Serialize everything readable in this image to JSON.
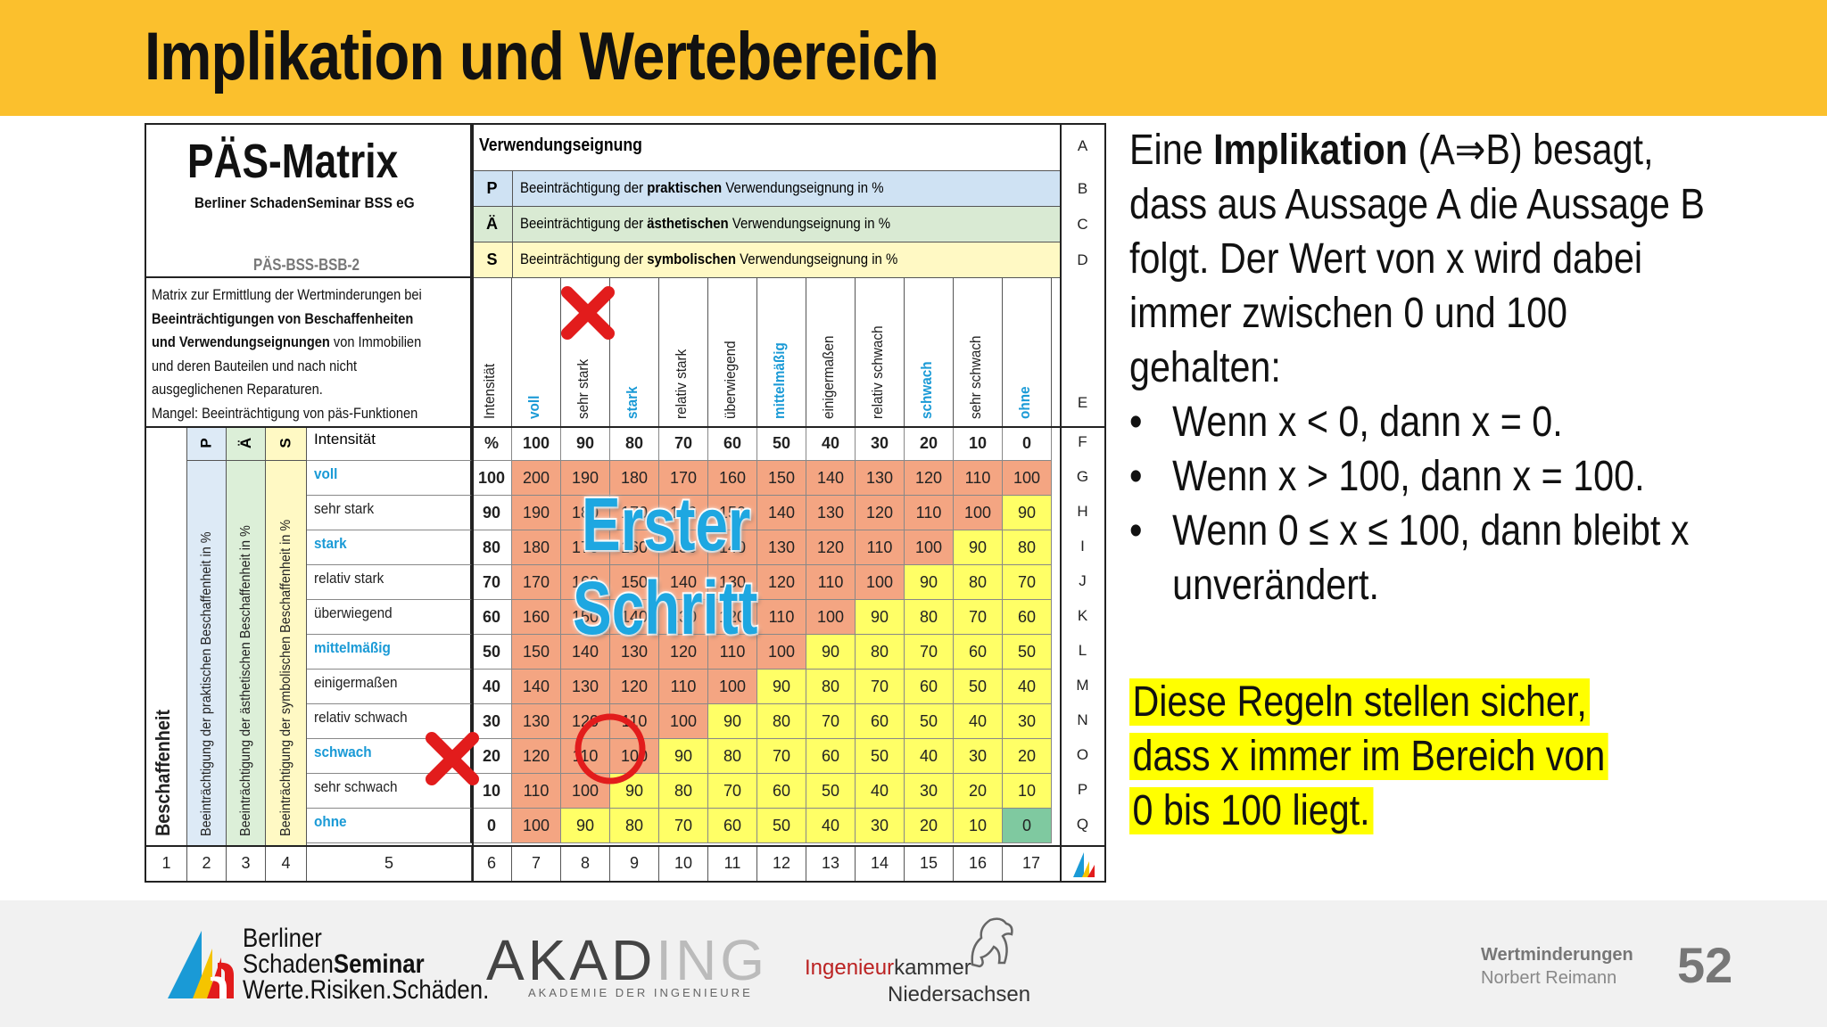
{
  "title": "Implikation und Wertebereich",
  "matrix": {
    "title": "PÄS-Matrix",
    "subtitle": "Berliner SchadenSeminar BSS eG",
    "code": "PÄS-BSS-BSB-2",
    "desc_1": "Matrix zur Ermittlung der Wertminderungen bei",
    "desc_2": "Beeinträchtigungen von Beschaffenheiten",
    "desc_3a": "und Verwendungseignungen",
    "desc_3b": " von Immobilien",
    "desc_4": "und deren Bauteilen und nach nicht",
    "desc_5": "ausgeglichenen Reparaturen.",
    "desc_6": "Mangel: Beeinträchtigung von päs-Funktionen",
    "vu_title": "Verwendungseignung",
    "vu_rows": [
      {
        "key": "P",
        "pre": "Beeinträchtigung der ",
        "bold": "praktischen",
        "post": " Verwendungseignung in %",
        "letter": "B",
        "color": "#cfe2f3"
      },
      {
        "key": "Ä",
        "pre": "Beeinträchtigung der ",
        "bold": "ästhetischen",
        "post": " Verwendungseignung in %",
        "letter": "C",
        "color": "#d9ead3"
      },
      {
        "key": "S",
        "pre": "Beeinträchtigung der ",
        "bold": "symbolischen",
        "post": " Verwendungseignung in %",
        "letter": "D",
        "color": "#fff9c4"
      }
    ],
    "letter_a": "A",
    "letter_e": "E",
    "col_headers": [
      "Intensität",
      "voll",
      "sehr stark",
      "stark",
      "relativ stark",
      "überwiegend",
      "mittelmäßig",
      "einigermaßen",
      "relativ schwach",
      "schwach",
      "sehr schwach",
      "ohne"
    ],
    "col_header_blue": [
      false,
      true,
      false,
      true,
      false,
      false,
      true,
      false,
      false,
      true,
      false,
      true
    ],
    "side_labels": {
      "p": "P",
      "ae": "Ä",
      "s": "S",
      "beschaffenheit": "Beschaffenheit",
      "p_long": "Beeinträchtigung der praktischen Beschaffenheit in %",
      "ae_long": "Beeinträchtigung der ästhetischen Beschaffenheit in %",
      "s_long": "Beeinträchtigung der symbolischen Beschaffenheit in %"
    },
    "intensity_row": {
      "label": "Intensität",
      "unit": "%",
      "values": [
        "100",
        "90",
        "80",
        "70",
        "60",
        "50",
        "40",
        "30",
        "20",
        "10",
        "0"
      ],
      "letter": "F"
    },
    "rows": [
      {
        "label": "voll",
        "blue": true,
        "intensity": "100",
        "values": [
          "200",
          "190",
          "180",
          "170",
          "160",
          "150",
          "140",
          "130",
          "120",
          "110",
          "100"
        ],
        "letter": "G"
      },
      {
        "label": "sehr stark",
        "blue": false,
        "intensity": "90",
        "values": [
          "190",
          "180",
          "170",
          "160",
          "150",
          "140",
          "130",
          "120",
          "110",
          "100",
          "90"
        ],
        "letter": "H"
      },
      {
        "label": "stark",
        "blue": true,
        "intensity": "80",
        "values": [
          "180",
          "170",
          "160",
          "150",
          "140",
          "130",
          "120",
          "110",
          "100",
          "90",
          "80"
        ],
        "letter": "I"
      },
      {
        "label": "relativ stark",
        "blue": false,
        "intensity": "70",
        "values": [
          "170",
          "160",
          "150",
          "140",
          "130",
          "120",
          "110",
          "100",
          "90",
          "80",
          "70"
        ],
        "letter": "J"
      },
      {
        "label": "überwiegend",
        "blue": false,
        "intensity": "60",
        "values": [
          "160",
          "150",
          "140",
          "130",
          "120",
          "110",
          "100",
          "90",
          "80",
          "70",
          "60"
        ],
        "letter": "K"
      },
      {
        "label": "mittelmäßig",
        "blue": true,
        "intensity": "50",
        "values": [
          "150",
          "140",
          "130",
          "120",
          "110",
          "100",
          "90",
          "80",
          "70",
          "60",
          "50"
        ],
        "letter": "L"
      },
      {
        "label": "einigermaßen",
        "blue": false,
        "intensity": "40",
        "values": [
          "140",
          "130",
          "120",
          "110",
          "100",
          "90",
          "80",
          "70",
          "60",
          "50",
          "40"
        ],
        "letter": "M"
      },
      {
        "label": "relativ schwach",
        "blue": false,
        "intensity": "30",
        "values": [
          "130",
          "120",
          "110",
          "100",
          "90",
          "80",
          "70",
          "60",
          "50",
          "40",
          "30"
        ],
        "letter": "N"
      },
      {
        "label": "schwach",
        "blue": true,
        "intensity": "20",
        "values": [
          "120",
          "110",
          "100",
          "90",
          "80",
          "70",
          "60",
          "50",
          "40",
          "30",
          "20"
        ],
        "letter": "O"
      },
      {
        "label": "sehr schwach",
        "blue": false,
        "intensity": "10",
        "values": [
          "110",
          "100",
          "90",
          "80",
          "70",
          "60",
          "50",
          "40",
          "30",
          "20",
          "10"
        ],
        "letter": "P"
      },
      {
        "label": "ohne",
        "blue": true,
        "intensity": "0",
        "values": [
          "100",
          "90",
          "80",
          "70",
          "60",
          "50",
          "40",
          "30",
          "20",
          "10",
          "0"
        ],
        "letter": "Q"
      }
    ],
    "footer_numbers": [
      "1",
      "2",
      "3",
      "4",
      "5",
      "6",
      "7",
      "8",
      "9",
      "10",
      "11",
      "12",
      "13",
      "14",
      "15",
      "16",
      "17"
    ],
    "colors": {
      "orange": "#f4a582",
      "yellow": "#ffff66",
      "green": "#7fc9a0",
      "blue_text": "#1a9ad6"
    }
  },
  "overlay": {
    "line1": "Erster",
    "line2": "Schritt"
  },
  "right_text": {
    "p1_pre": "Eine ",
    "p1_bold": "Implikation",
    "p1_post": " (A⇒B) besagt, dass aus Aussage A die Aussage B folgt. Der Wert von x wird dabei immer zwischen 0 und 100 gehalten:",
    "bullets": [
      "Wenn x < 0, dann x = 0.",
      "Wenn x > 100, dann x = 100.",
      "Wenn 0 ≤ x ≤ 100, dann bleibt x unverändert."
    ],
    "highlight": "Diese Regeln stellen sicher, dass x immer im Bereich von 0 bis 100 liegt."
  },
  "footer": {
    "bss_line1": "Berliner",
    "bss_line2a": "Schaden",
    "bss_line2b": "Seminar",
    "bss_line3": "Werte.Risiken.Schäden.",
    "akad": "AKAD",
    "akad_ing": "ING",
    "akad_sub": "AKADEMIE DER INGENIEURE",
    "ik_red": "Ingenieur",
    "ik_rest": "kammer",
    "ik_line2": "Niedersachsen",
    "wm": "Wertminderungen",
    "author": "Norbert Reimann",
    "page": "52"
  }
}
